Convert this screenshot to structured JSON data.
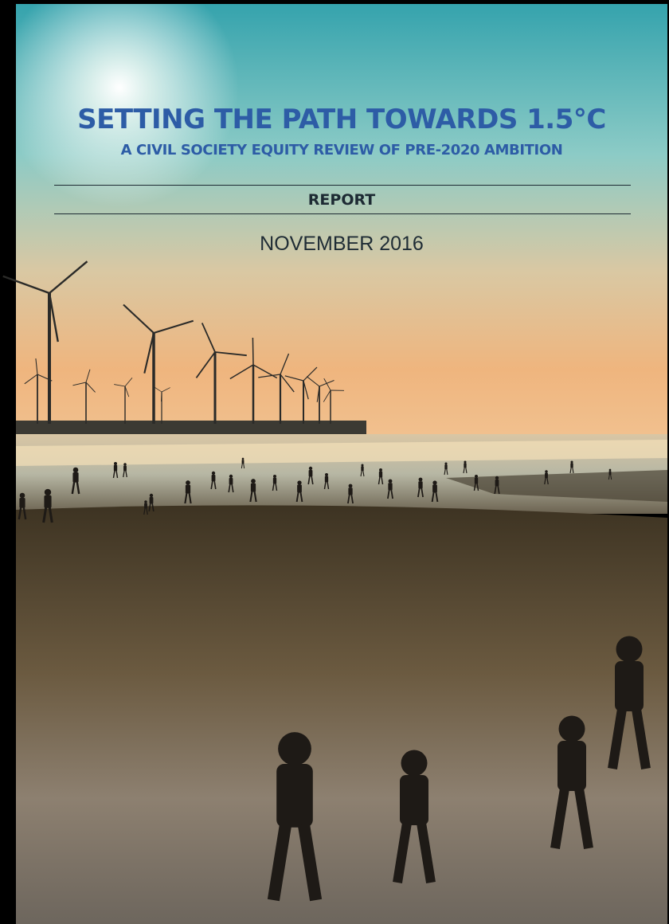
{
  "cover": {
    "title": "SETTING THE PATH TOWARDS 1.5°C",
    "subtitle": "A CIVIL SOCIETY EQUITY REVIEW OF PRE-2020 AMBITION",
    "label": "REPORT",
    "date": "NOVEMBER 2016"
  }
}
